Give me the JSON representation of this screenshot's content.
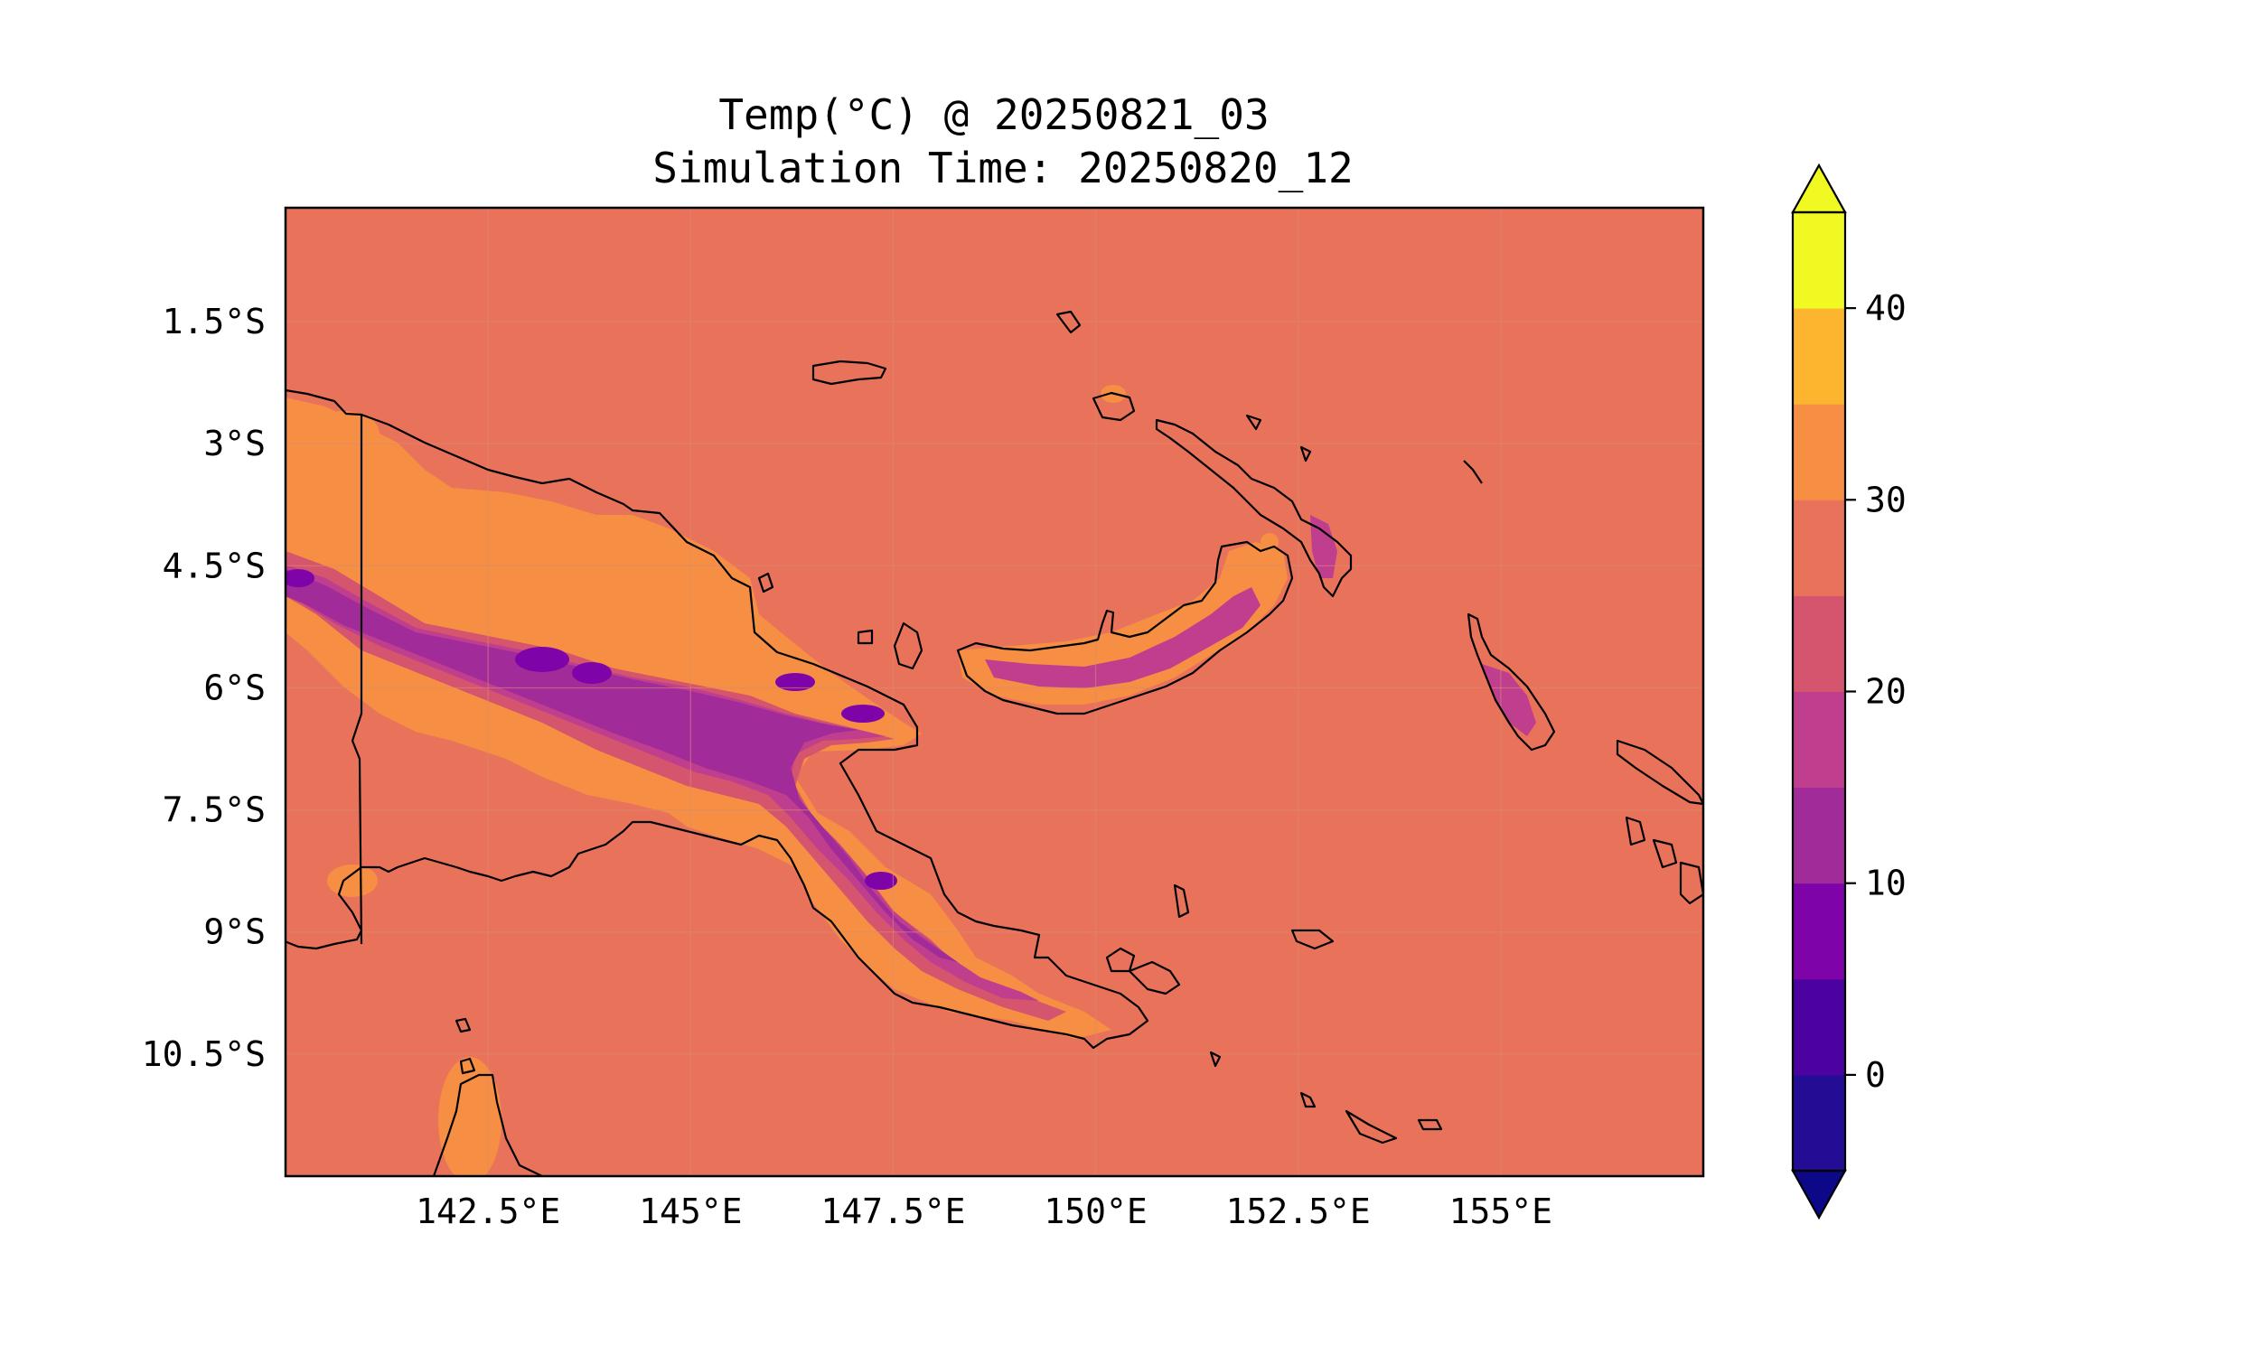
{
  "title": {
    "line1": "Temp(°C) @ 20250821_03",
    "line2": "Simulation Time: 20250820_12"
  },
  "map": {
    "lon_range": [
      140.0,
      157.5
    ],
    "lat_range": [
      -12.0,
      -0.1
    ],
    "x_ticks": [
      {
        "value": 142.5,
        "label": "142.5°E"
      },
      {
        "value": 145.0,
        "label": "145°E"
      },
      {
        "value": 147.5,
        "label": "147.5°E"
      },
      {
        "value": 150.0,
        "label": "150°E"
      },
      {
        "value": 152.5,
        "label": "152.5°E"
      },
      {
        "value": 155.0,
        "label": "155°E"
      }
    ],
    "y_ticks": [
      {
        "value": -1.5,
        "label": "1.5°S"
      },
      {
        "value": -3.0,
        "label": "3°S"
      },
      {
        "value": -4.5,
        "label": "4.5°S"
      },
      {
        "value": -6.0,
        "label": "6°S"
      },
      {
        "value": -7.5,
        "label": "7.5°S"
      },
      {
        "value": -9.0,
        "label": "9°S"
      },
      {
        "value": -10.5,
        "label": "10.5°S"
      }
    ],
    "background_color": "#e8735a"
  },
  "colorbar": {
    "levels": [
      -5,
      0,
      5,
      10,
      15,
      20,
      25,
      30,
      35,
      40,
      45
    ],
    "colors": [
      "#250c94",
      "#4c02a1",
      "#7e03a8",
      "#a22b9a",
      "#bf3e8e",
      "#d5546e",
      "#e8735a",
      "#f68f44",
      "#fdb42f",
      "#f0f921"
    ],
    "under_color": "#0d0887",
    "over_color": "#f0f921",
    "ticks": [
      {
        "value": 0,
        "label": "0"
      },
      {
        "value": 10,
        "label": "10"
      },
      {
        "value": 20,
        "label": "20"
      },
      {
        "value": 30,
        "label": "30"
      },
      {
        "value": 40,
        "label": "40"
      }
    ]
  }
}
